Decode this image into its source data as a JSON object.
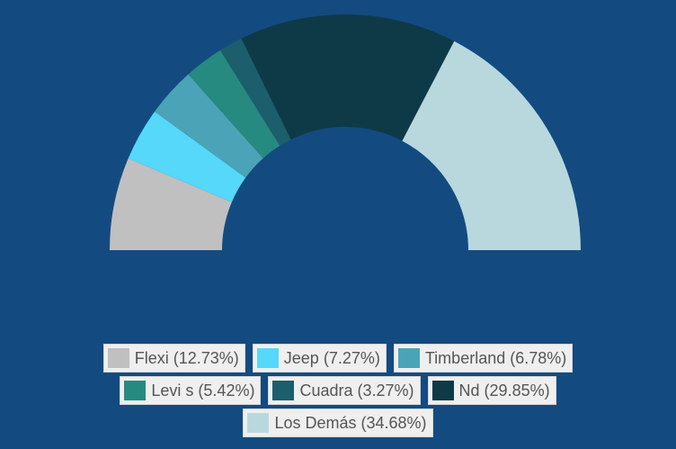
{
  "chart_data": {
    "type": "semi-donut",
    "categories": [
      "Flexi",
      "Jeep",
      "Timberland",
      "Levi s",
      "Cuadra",
      "Nd",
      "Los Demás"
    ],
    "values": [
      12.73,
      7.27,
      6.78,
      5.42,
      3.27,
      29.85,
      34.68
    ],
    "value_labels": [
      "(12.73%)",
      "(7.27%)",
      "(6.78%)",
      "(5.42%)",
      "(3.27%)",
      "(29.85%)",
      "(34.68%)"
    ],
    "colors": [
      "#c0c0c0",
      "#55d8fa",
      "#4ba3b8",
      "#268a80",
      "#1c5e6b",
      "#0e3a48",
      "#b8d8de"
    ],
    "legend": "bottom"
  }
}
